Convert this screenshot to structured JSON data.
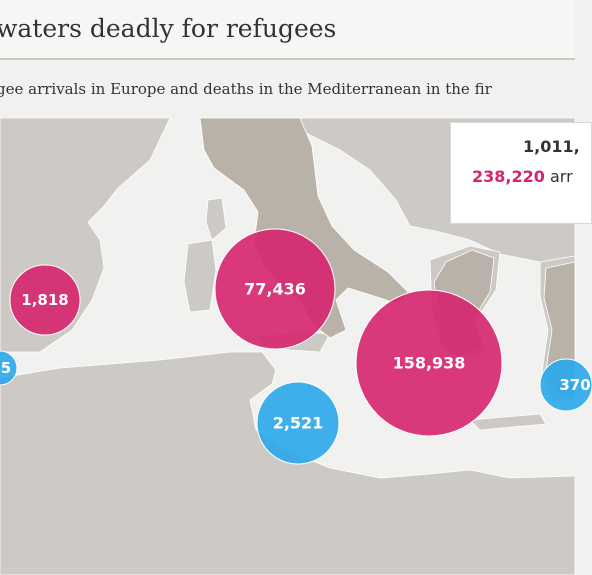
{
  "title": "waters deadly for refugees",
  "subtitle": "gee arrivals in Europe and deaths in the Mediterranean in the fir",
  "totals": {
    "arrivals_total": "1,011,",
    "sea_arrivals_count": "238,220",
    "sea_arrivals_label": "arr"
  },
  "legend_colors": {
    "arrivals": "#d6246e",
    "deaths": "#2aa7ea"
  },
  "bubbles": [
    {
      "label": "1,818",
      "kind": "arrivals",
      "area": "spain"
    },
    {
      "label": "77,436",
      "kind": "arrivals",
      "area": "italy"
    },
    {
      "label": "158,938",
      "kind": "arrivals",
      "area": "ionian"
    },
    {
      "label": "5",
      "kind": "deaths",
      "area": "alboran"
    },
    {
      "label": "2,521",
      "kind": "deaths",
      "area": "central"
    },
    {
      "label": "370",
      "kind": "deaths",
      "area": "aegean"
    }
  ]
}
